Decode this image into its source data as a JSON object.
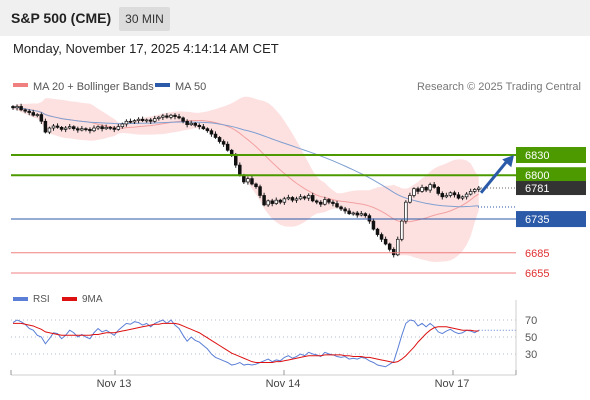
{
  "header": {
    "title": "S&P 500 (CME)",
    "timeframe": "30 MIN",
    "timestamp": "Monday, November 17, 2025 4:14:14 AM CET"
  },
  "colors": {
    "bollinger": "#f08080",
    "ma50": "#2a5aa8",
    "resistance": "#4c9a00",
    "pivot": "#2a5aa8",
    "support": "#f08080",
    "current": "#333333",
    "arrow": "#2a5aa8",
    "rsi": "#5b7fd6",
    "rsi_ma": "#dd1111"
  },
  "chart_data": [
    {
      "type": "candlestick",
      "legend": [
        {
          "name": "MA 20 + Bollinger Bands",
          "color": "#f08080"
        },
        {
          "name": "MA 50",
          "color": "#2a5aa8"
        }
      ],
      "credit": "Research © 2025 Trading Central",
      "x_labels": [
        "Nov 13",
        "Nov 14",
        "Nov 17"
      ],
      "ylim": [
        6635,
        6925
      ],
      "levels": [
        {
          "label": "6830",
          "value": 6830,
          "kind": "resistance"
        },
        {
          "label": "6800",
          "value": 6800,
          "kind": "resistance"
        },
        {
          "label": "6781",
          "value": 6781,
          "kind": "current"
        },
        {
          "label": "6735",
          "value": 6735,
          "kind": "pivot"
        },
        {
          "label": "6685",
          "value": 6685,
          "kind": "support"
        },
        {
          "label": "6655",
          "value": 6655,
          "kind": "support"
        }
      ],
      "arrow": {
        "from": 6774,
        "to": 6830,
        "direction": "up"
      },
      "close": [
        6900,
        6902,
        6897,
        6895,
        6893,
        6889,
        6890,
        6880,
        6864,
        6870,
        6873,
        6871,
        6868,
        6870,
        6872,
        6869,
        6867,
        6869,
        6868,
        6866,
        6870,
        6872,
        6869,
        6871,
        6870,
        6868,
        6872,
        6876,
        6880,
        6879,
        6881,
        6883,
        6881,
        6882,
        6880,
        6884,
        6886,
        6888,
        6886,
        6889,
        6887,
        6885,
        6880,
        6875,
        6877,
        6874,
        6872,
        6869,
        6866,
        6861,
        6856,
        6850,
        6846,
        6837,
        6830,
        6815,
        6800,
        6790,
        6795,
        6787,
        6783,
        6770,
        6756,
        6762,
        6758,
        6763,
        6760,
        6765,
        6767,
        6763,
        6765,
        6768,
        6766,
        6770,
        6762,
        6760,
        6757,
        6764,
        6760,
        6758,
        6753,
        6750,
        6747,
        6743,
        6744,
        6741,
        6743,
        6740,
        6732,
        6720,
        6712,
        6705,
        6698,
        6690,
        6682,
        6705,
        6732,
        6760,
        6770,
        6780,
        6776,
        6782,
        6778,
        6786,
        6782,
        6773,
        6768,
        6770,
        6774,
        6771,
        6766,
        6768,
        6772,
        6776,
        6779,
        6781
      ]
    },
    {
      "type": "line",
      "name": "RSI",
      "legend": [
        {
          "name": "RSI",
          "color": "#5b7fd6"
        },
        {
          "name": "9MA",
          "color": "#dd1111"
        }
      ],
      "y_ticks": [
        70,
        50,
        30
      ],
      "ylim": [
        15,
        85
      ],
      "rsi": [
        67,
        70,
        68,
        65,
        60,
        58,
        52,
        50,
        42,
        48,
        55,
        54,
        48,
        52,
        58,
        55,
        50,
        53,
        50,
        48,
        55,
        60,
        56,
        58,
        55,
        52,
        58,
        62,
        66,
        65,
        68,
        67,
        64,
        66,
        62,
        66,
        68,
        70,
        66,
        70,
        64,
        60,
        52,
        45,
        50,
        46,
        44,
        40,
        36,
        30,
        26,
        24,
        22,
        20,
        17,
        18,
        20,
        17,
        18,
        17,
        18,
        20,
        22,
        24,
        21,
        23,
        22,
        26,
        28,
        25,
        27,
        30,
        28,
        32,
        30,
        29,
        27,
        32,
        30,
        29,
        27,
        26,
        27,
        24,
        25,
        24,
        26,
        25,
        22,
        20,
        17,
        16,
        15,
        18,
        21,
        36,
        52,
        66,
        70,
        69,
        63,
        66,
        62,
        66,
        62,
        56,
        54,
        57,
        59,
        56,
        54,
        55,
        58,
        57,
        55,
        58
      ],
      "rsi_ma": [
        66,
        66,
        66,
        65,
        64,
        63,
        61,
        59,
        56,
        55,
        54,
        53,
        52,
        52,
        52,
        52,
        52,
        52,
        52,
        52,
        53,
        53,
        54,
        55,
        55,
        55,
        56,
        57,
        58,
        59,
        60,
        61,
        62,
        63,
        64,
        65,
        65,
        66,
        66,
        66,
        66,
        65,
        63,
        61,
        59,
        57,
        55,
        52,
        49,
        46,
        43,
        40,
        37,
        34,
        31,
        29,
        27,
        25,
        23,
        21,
        20,
        20,
        20,
        20,
        20,
        21,
        21,
        22,
        23,
        24,
        25,
        26,
        27,
        28,
        28,
        28,
        28,
        29,
        29,
        29,
        29,
        29,
        28,
        28,
        27,
        27,
        27,
        26,
        26,
        25,
        24,
        23,
        22,
        21,
        20,
        21,
        24,
        28,
        33,
        38,
        44,
        49,
        54,
        58,
        61,
        62,
        62,
        62,
        61,
        60,
        59,
        58,
        58,
        58,
        57,
        57
      ]
    }
  ]
}
